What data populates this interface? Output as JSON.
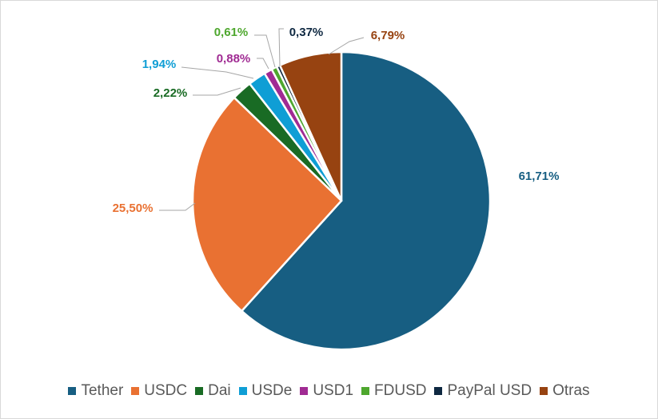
{
  "chart_data": {
    "type": "pie",
    "categories": [
      "Tether",
      "USDC",
      "Dai",
      "USDe",
      "USD1",
      "FDUSD",
      "PayPal USD",
      "Otras"
    ],
    "values": [
      61.71,
      25.5,
      2.22,
      1.94,
      0.88,
      0.61,
      0.37,
      6.79
    ],
    "data_labels": [
      "61,71%",
      "25,50%",
      "2,22%",
      "1,94%",
      "0,88%",
      "0,61%",
      "0,37%",
      "6,79%"
    ],
    "colors": [
      "#175E82",
      "#E97132",
      "#196B24",
      "#0F9ED5",
      "#A02B93",
      "#4EA72E",
      "#0E2841",
      "#974311"
    ],
    "title": "",
    "legend_position": "bottom"
  }
}
